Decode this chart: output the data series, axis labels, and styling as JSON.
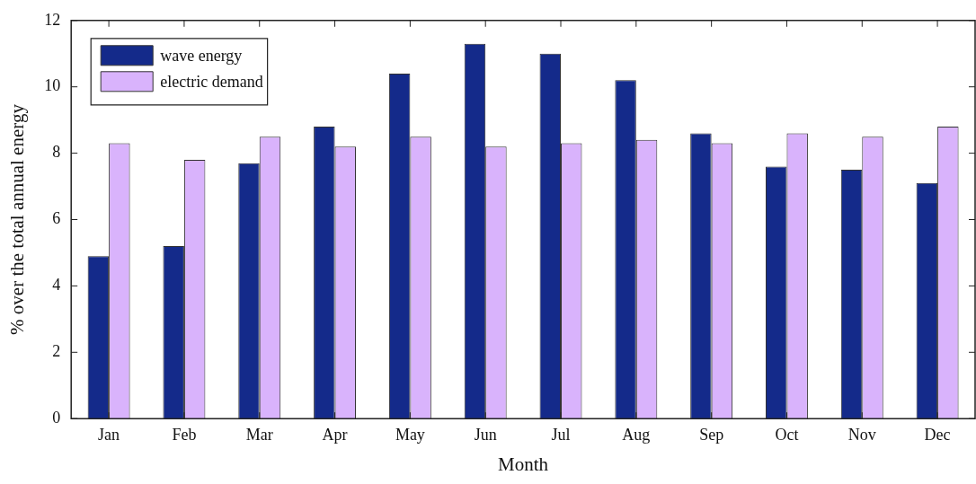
{
  "chart_data": {
    "type": "bar",
    "xlabel": "Month",
    "ylabel": "% over the total annual energy",
    "categories": [
      "Jan",
      "Feb",
      "Mar",
      "Apr",
      "May",
      "Jun",
      "Jul",
      "Aug",
      "Sep",
      "Oct",
      "Nov",
      "Dec"
    ],
    "series": [
      {
        "name": "wave energy",
        "color": "#142a8a",
        "values": [
          4.9,
          5.2,
          7.7,
          8.8,
          10.4,
          11.3,
          11.0,
          10.2,
          8.6,
          7.6,
          7.5,
          7.1
        ]
      },
      {
        "name": "electric demand",
        "color": "#d9b3fc",
        "values": [
          8.3,
          7.8,
          8.5,
          8.2,
          8.5,
          8.2,
          8.3,
          8.4,
          8.3,
          8.6,
          8.5,
          8.8
        ]
      }
    ],
    "ylim": [
      0,
      12
    ],
    "yticks": [
      0,
      2,
      4,
      6,
      8,
      10,
      12
    ],
    "grid": false,
    "legend": "top left"
  }
}
